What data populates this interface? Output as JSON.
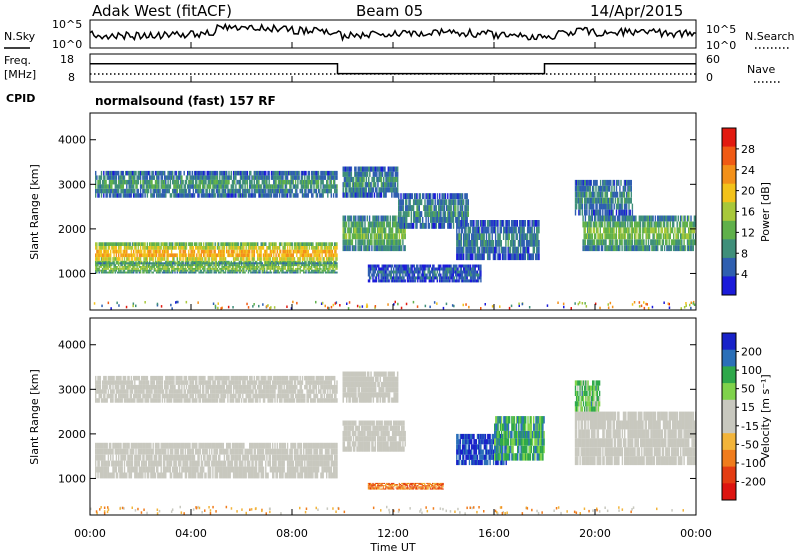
{
  "header": {
    "title": "Adak West (fitACF)",
    "beam": "Beam 05",
    "date": "14/Apr/2015"
  },
  "top_panels": {
    "nsky_label": "N.Sky",
    "nsearch_label": "N.Search",
    "noise_ticks": [
      "10^5",
      "10^0"
    ],
    "freq_label_line1": "Freq.",
    "freq_label_line2": "[MHz]",
    "freq_ticks": [
      "18",
      "8"
    ],
    "nave_label": "Nave",
    "nave_ticks": [
      "60",
      "0"
    ],
    "cpid_label": "CPID",
    "cpid_text": "normalsound (fast) 157 RF"
  },
  "colors": {
    "power_scale": [
      "#1b1bd9",
      "#2f5fb0",
      "#3f8f7a",
      "#5fb04a",
      "#a8c83a",
      "#f3c21a",
      "#f39019",
      "#f05a14",
      "#e21a10"
    ],
    "velocity_scale": [
      "#1822c9",
      "#2a6fb8",
      "#2ea84a",
      "#7fd24b",
      "#c8c8bf",
      "#c8c8bf",
      "#f2b43a",
      "#f07c1c",
      "#e43c12",
      "#dd1410"
    ],
    "axis": "#000000"
  },
  "chart_data": [
    {
      "type": "heatmap",
      "title": "",
      "panel": "power",
      "xlabel": "Time UT",
      "ylabel": "Slant Range [km]",
      "x_ticks": [
        "00:00",
        "04:00",
        "08:00",
        "12:00",
        "16:00",
        "20:00",
        "00:00"
      ],
      "xlim_hours": [
        0,
        24
      ],
      "y_ticks": [
        1000,
        2000,
        3000,
        4000
      ],
      "ylim": [
        180,
        4600
      ],
      "colorbar_label": "Power [dB]",
      "colorbar_ticks": [
        4,
        8,
        12,
        16,
        20,
        24,
        28
      ],
      "colorbar_range": [
        0,
        30
      ],
      "bands": [
        {
          "t0": 0.2,
          "t1": 9.8,
          "r0": 1200,
          "r1": 1700,
          "level": 22
        },
        {
          "t0": 0.2,
          "t1": 9.8,
          "r0": 1000,
          "r1": 1250,
          "level": 15
        },
        {
          "t0": 0.2,
          "t1": 9.8,
          "r0": 2700,
          "r1": 3300,
          "level": 10
        },
        {
          "t0": 10.0,
          "t1": 12.5,
          "r0": 1500,
          "r1": 2300,
          "level": 13
        },
        {
          "t0": 10.0,
          "t1": 12.2,
          "r0": 2700,
          "r1": 3400,
          "level": 9
        },
        {
          "t0": 12.2,
          "t1": 15.0,
          "r0": 2000,
          "r1": 2800,
          "level": 9
        },
        {
          "t0": 14.5,
          "t1": 17.8,
          "r0": 1300,
          "r1": 2200,
          "level": 8
        },
        {
          "t0": 11.0,
          "t1": 15.5,
          "r0": 800,
          "r1": 1200,
          "level": 6
        },
        {
          "t0": 19.5,
          "t1": 24.0,
          "r0": 1500,
          "r1": 2300,
          "level": 14
        },
        {
          "t0": 19.2,
          "t1": 21.5,
          "r0": 2300,
          "r1": 3100,
          "level": 9
        }
      ]
    },
    {
      "type": "heatmap",
      "title": "",
      "panel": "velocity",
      "xlabel": "Time UT",
      "ylabel": "Slant Range [km]",
      "x_ticks": [
        "00:00",
        "04:00",
        "08:00",
        "12:00",
        "16:00",
        "20:00",
        "00:00"
      ],
      "xlim_hours": [
        0,
        24
      ],
      "y_ticks": [
        1000,
        2000,
        3000,
        4000
      ],
      "ylim": [
        180,
        4600
      ],
      "colorbar_label": "Velocity [m s⁻¹]",
      "colorbar_ticks": [
        200,
        100,
        50,
        15,
        -15,
        -50,
        -100,
        -200
      ],
      "bands": [
        {
          "t0": 0.2,
          "t1": 9.8,
          "r0": 1000,
          "r1": 1800,
          "v": 0
        },
        {
          "t0": 0.2,
          "t1": 9.8,
          "r0": 2700,
          "r1": 3300,
          "v": 0
        },
        {
          "t0": 10.0,
          "t1": 12.5,
          "r0": 1600,
          "r1": 2300,
          "v": 0
        },
        {
          "t0": 10.0,
          "t1": 12.2,
          "r0": 2700,
          "r1": 3400,
          "v": -5
        },
        {
          "t0": 11.0,
          "t1": 14.0,
          "r0": 750,
          "r1": 900,
          "v": -60
        },
        {
          "t0": 14.5,
          "t1": 16.5,
          "r0": 1300,
          "r1": 2000,
          "v": 150
        },
        {
          "t0": 16.0,
          "t1": 18.0,
          "r0": 1400,
          "r1": 2400,
          "v": 60
        },
        {
          "t0": 19.2,
          "t1": 24.0,
          "r0": 1300,
          "r1": 2500,
          "v": 0
        },
        {
          "t0": 19.2,
          "t1": 20.2,
          "r0": 2500,
          "r1": 3200,
          "v": 40
        }
      ]
    },
    {
      "type": "line",
      "title": "",
      "panel": "frequency",
      "ylabel": "Freq. [MHz]",
      "ylim": [
        8,
        18
      ],
      "x": [
        0,
        9.8,
        9.8,
        18.0,
        18.0,
        24.0
      ],
      "values": [
        14.5,
        14.5,
        11.0,
        11.0,
        14.5,
        14.5
      ]
    }
  ]
}
